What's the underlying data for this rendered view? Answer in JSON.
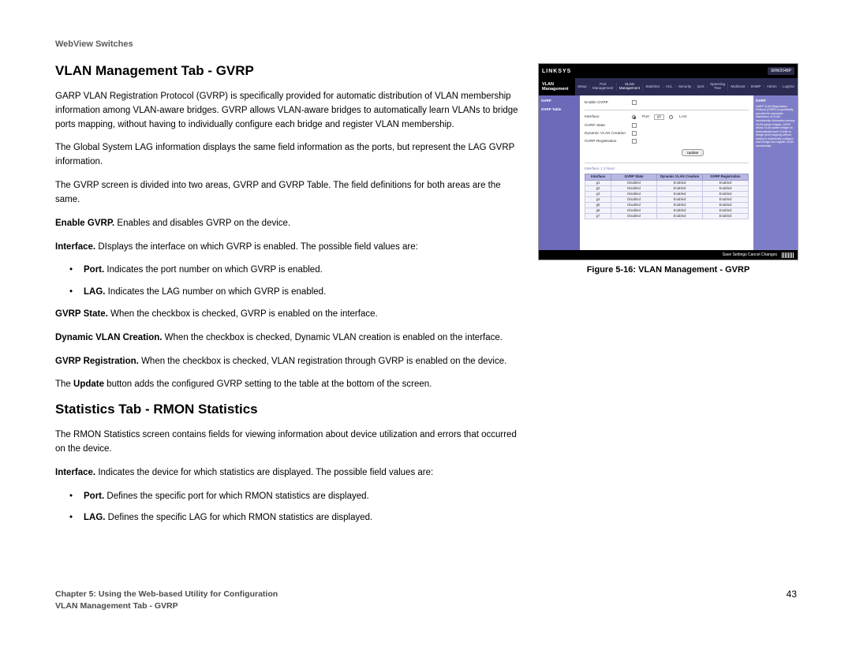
{
  "runningHead": "WebView Switches",
  "section1": {
    "heading": "VLAN Management Tab - GVRP",
    "p1": "GARP VLAN Registration Protocol (GVRP) is specifically provided for automatic distribution of VLAN membership information among VLAN-aware bridges. GVRP allows VLAN-aware bridges to automatically learn VLANs to bridge ports mapping, without having to individually configure each bridge and register VLAN membership.",
    "p2": "The Global System LAG information displays the same field information as the ports, but represent the LAG GVRP information.",
    "p3": "The GVRP screen is divided into two areas, GVRP and GVRP Table. The field definitions for both areas are the same.",
    "defs": [
      {
        "label": "Enable GVRP.",
        "text": " Enables and disables GVRP on the device."
      },
      {
        "label": "Interface.",
        "text": " DIsplays the interface on which GVRP is enabled. The possible field values are:"
      }
    ],
    "sub1": [
      {
        "label": "Port.",
        "text": " Indicates the port number on which GVRP is enabled."
      },
      {
        "label": "LAG.",
        "text": " Indicates the LAG number on which GVRP is enabled."
      }
    ],
    "defs2": [
      {
        "label": "GVRP State.",
        "text": " When the checkbox is checked, GVRP is enabled on the interface."
      },
      {
        "label": "Dynamic VLAN Creation.",
        "text": " When the checkbox is checked, Dynamic VLAN creation is enabled on the interface."
      },
      {
        "label": "GVRP Registration.",
        "text": " When the checkbox is checked, VLAN registration through GVRP is enabled on the device."
      }
    ],
    "p4a": "The ",
    "p4b": "Update",
    "p4c": " button adds the configured GVRP setting to the table at the bottom of the screen."
  },
  "section2": {
    "heading": "Statistics Tab - RMON Statistics",
    "p1": "The RMON Statistics screen contains fields for viewing information about device utilization and errors that occurred on the device.",
    "defs": [
      {
        "label": "Interface.",
        "text": " Indicates the device for which statistics are displayed. The possible field values are:"
      }
    ],
    "sub1": [
      {
        "label": "Port.",
        "text": " Defines the specific port for which RMON statistics are displayed."
      },
      {
        "label": "LAG.",
        "text": " Defines the specific LAG for which RMON statistics are displayed."
      }
    ]
  },
  "figure": {
    "caption": "Figure 5-16: VLAN Management - GVRP",
    "brand": "LINKSYS",
    "model": "SRW2048P",
    "navLeft": "VLAN Management",
    "tabs": [
      "Setup",
      "Port Management",
      "VLAN Management",
      "Statistics",
      "ACL",
      "Security",
      "QoS",
      "Spanning Tree",
      "Multicast",
      "SNMP",
      "Admin",
      "LogOut"
    ],
    "activeTab": 2,
    "side": [
      "GVRP",
      "GVRP Table"
    ],
    "form": {
      "enable": "Enable GVRP",
      "interface": "Interface",
      "ifPort": "Port",
      "ifPortVal": "g1",
      "ifLag": "LAG",
      "gvrpState": "GVRP State",
      "dynVlan": "Dynamic VLAN Creation",
      "gvrpReg": "GVRP Registration",
      "update": "Update"
    },
    "tableLabel": "Interface   1  2  Next",
    "table": {
      "headers": [
        "Interface",
        "GVRP State",
        "Dynamic VLAN Creation",
        "GVRP Registration"
      ],
      "rows": [
        [
          "g1",
          "Disabled",
          "Enabled",
          "Enabled"
        ],
        [
          "g2",
          "Disabled",
          "Enabled",
          "Enabled"
        ],
        [
          "g3",
          "Disabled",
          "Enabled",
          "Enabled"
        ],
        [
          "g4",
          "Disabled",
          "Enabled",
          "Enabled"
        ],
        [
          "g5",
          "Disabled",
          "Enabled",
          "Enabled"
        ],
        [
          "g6",
          "Disabled",
          "Enabled",
          "Enabled"
        ],
        [
          "g7",
          "Disabled",
          "Enabled",
          "Enabled"
        ]
      ]
    },
    "helpTitle": "GVRP",
    "helpBody": "GARP VLAN Registration Protocol (GVRP) is specifically provided for automatic distribution of VLAN membership information among VLAN-aware bridges. GVRP allows VLAN-aware bridges to automatically learn VLANs to bridge ports mapping without having to individually configure each bridge and register VLAN membership.",
    "footerText": "Save Settings  Cancel Changes"
  },
  "footer": {
    "line1": "Chapter 5: Using the Web-based Utility for Configuration",
    "line2": "VLAN Management Tab - GVRP",
    "pageNo": "43"
  },
  "colors": {
    "navbg": "#2b2b54",
    "sidebg": "#6a6ab8",
    "helpbg": "#7e7ec8",
    "tblhead": "#b8b8e2"
  }
}
